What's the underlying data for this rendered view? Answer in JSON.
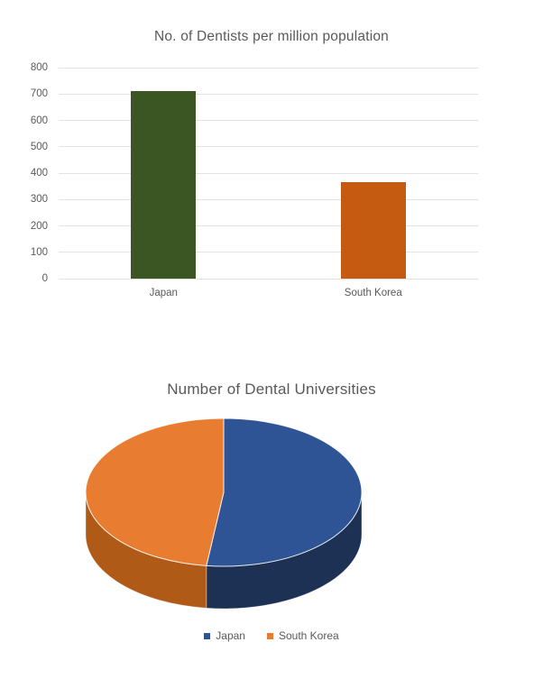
{
  "page": {
    "background": "#ffffff"
  },
  "chart_data": [
    {
      "type": "bar",
      "title": "No. of Dentists per million population",
      "categories": [
        "Japan",
        "South Korea"
      ],
      "values": [
        710,
        365
      ],
      "bar_colors": [
        "#3b5623",
        "#c55a11"
      ],
      "xlabel": "",
      "ylabel": "",
      "ylim": [
        0,
        800
      ],
      "yticks": [
        0,
        100,
        200,
        300,
        400,
        500,
        600,
        700,
        800
      ],
      "grid": true,
      "legend_position": "none",
      "text_color": "#595959",
      "gridline_color": "#e2e2e8"
    },
    {
      "type": "pie",
      "title": "Number of Dental Universities",
      "style": "3d",
      "start_angle_deg": 0,
      "slices": [
        {
          "label": "Japan",
          "value": 52,
          "color": "#2f5496",
          "side_color": "#1d3154"
        },
        {
          "label": "South Korea",
          "value": 48,
          "color": "#e87d31",
          "side_color": "#b05a17"
        }
      ],
      "note": "slice values are percent estimates read from slice angles (no data labels shown)",
      "legend_position": "bottom",
      "text_color": "#595959"
    }
  ]
}
